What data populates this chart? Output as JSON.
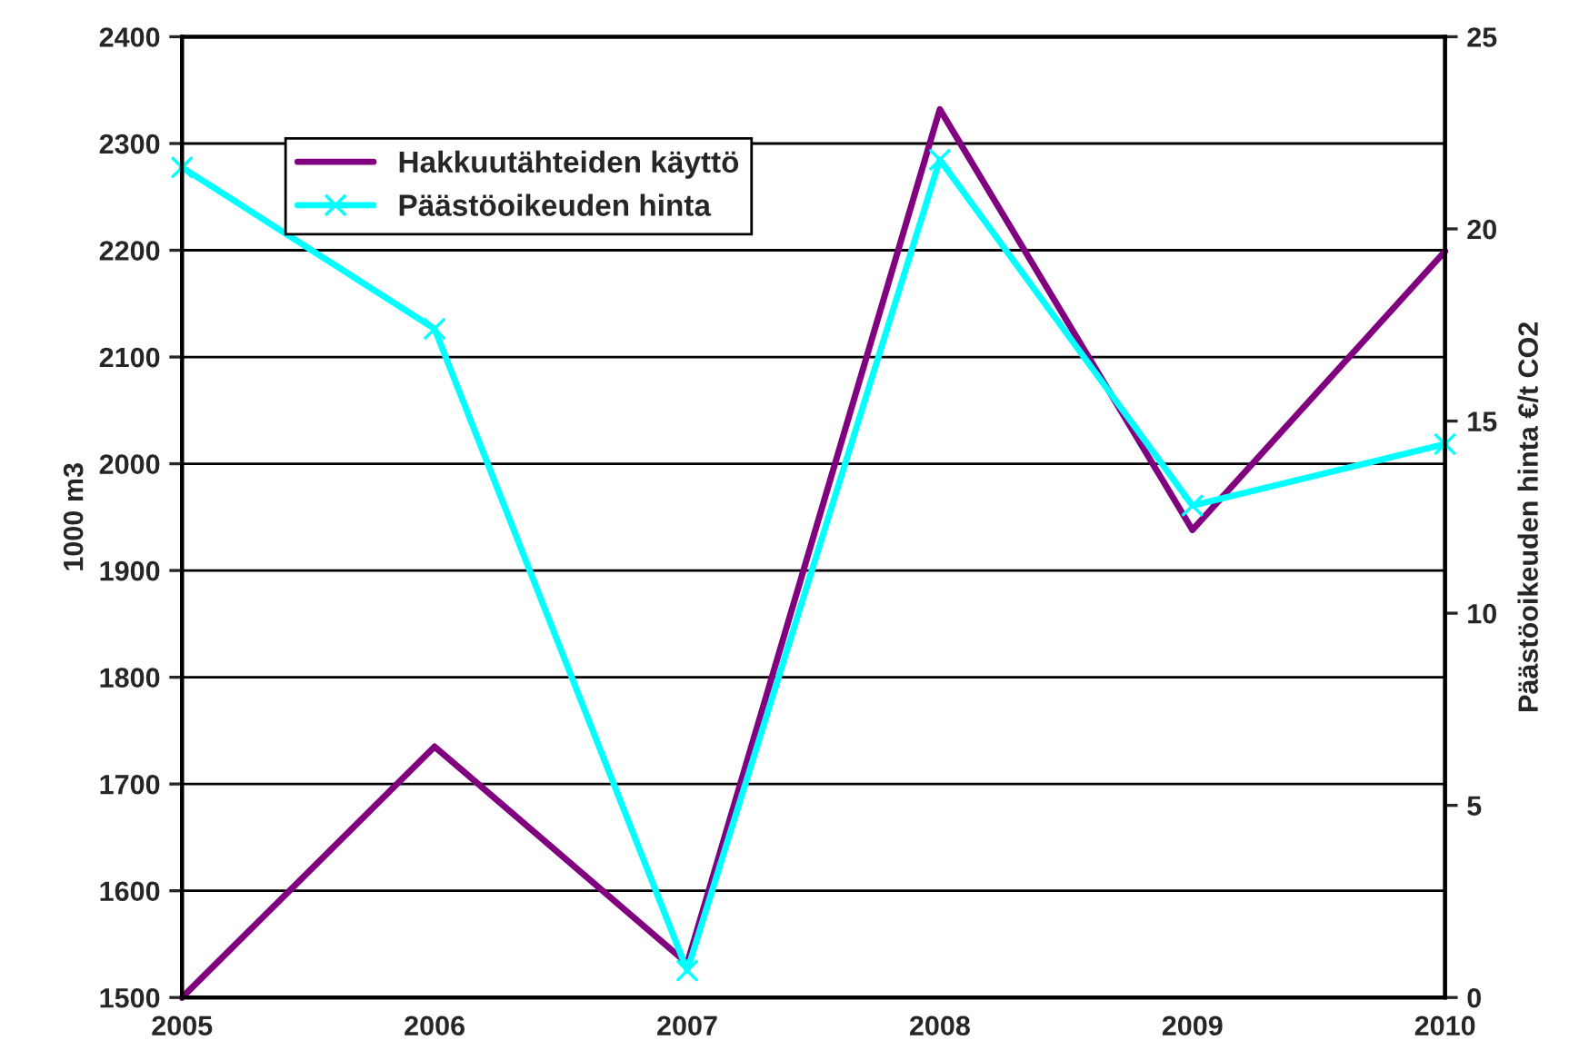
{
  "chart_data": {
    "type": "line",
    "x": [
      2005,
      2006,
      2007,
      2008,
      2009,
      2010
    ],
    "series": [
      {
        "name": "Hakkuutähteiden käyttö",
        "color": "#800080",
        "values": [
          1500,
          1735,
          1532,
          2332,
          1938,
          2199
        ],
        "marker": "none"
      },
      {
        "name": "Päästöoikeuden hinta",
        "color": "#00ffff",
        "values": [
          21.6,
          17.4,
          0.7,
          21.8,
          12.8,
          14.4
        ],
        "axis": "y2",
        "marker": "cross"
      }
    ],
    "ylabel": "1000 m3",
    "y2label": "Päästöoikeuden hinta €/t CO2",
    "xlim": [
      2005,
      2010
    ],
    "xticks": [
      2005,
      2006,
      2007,
      2008,
      2009,
      2010
    ],
    "ylim": [
      1500,
      2400
    ],
    "yticks": [
      1500,
      1600,
      1700,
      1800,
      1900,
      2000,
      2100,
      2200,
      2300,
      2400
    ],
    "y2lim": [
      0,
      25
    ],
    "y2ticks": [
      0,
      5,
      10,
      15,
      20,
      25
    ],
    "grid": "y",
    "legend": "top left"
  }
}
